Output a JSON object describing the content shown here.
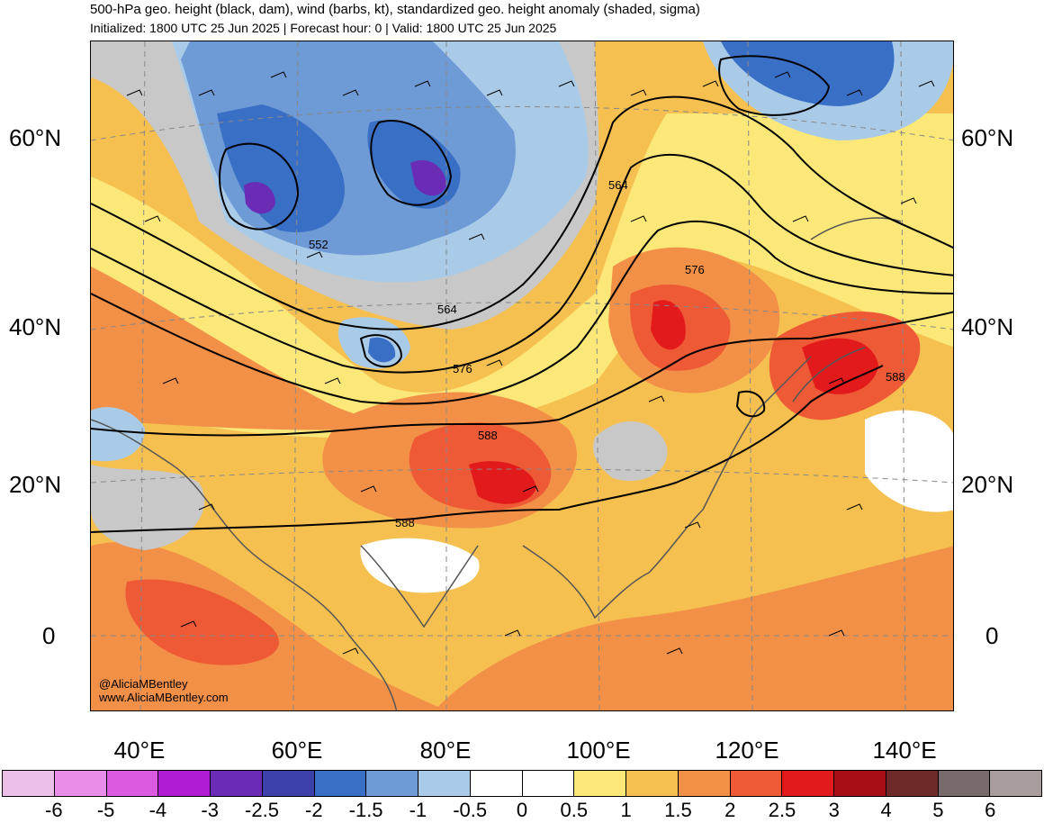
{
  "title": "500-hPa geo. height (black, dam), wind (barbs, kt), standardized geo. height anomaly (shaded, sigma)",
  "subtitle": "Initialized: 1800 UTC 25 Jun 2025 | Forecast hour: 0 | Valid: 1800 UTC 25 Jun 2025",
  "lat_labels": [
    "60°N",
    "40°N",
    "20°N",
    "0"
  ],
  "lon_labels": [
    "40°E",
    "60°E",
    "80°E",
    "100°E",
    "120°E",
    "140°E"
  ],
  "contour_labels": [
    "564",
    "552",
    "576",
    "564",
    "576",
    "588",
    "588",
    "588"
  ],
  "credit": {
    "handle": "@AliciaMBentley",
    "website": "www.AliciaMBentley.com"
  },
  "colorbar": {
    "labels": [
      "-6",
      "-5",
      "-4",
      "-3",
      "-2.5",
      "-2",
      "-1.5",
      "-1",
      "-0.5",
      "0",
      "0.5",
      "1",
      "1.5",
      "2",
      "2.5",
      "3",
      "4",
      "5",
      "6"
    ],
    "colors": [
      "#ebbfe8",
      "#e88ee8",
      "#db5be0",
      "#b01cd6",
      "#6a2bb5",
      "#3b41a8",
      "#3a6fc6",
      "#6e9ad6",
      "#a9cbe8",
      "#ffffff",
      "#ffffff",
      "#fbe878",
      "#f6c050",
      "#f29048",
      "#ef5a36",
      "#e31a1c",
      "#a50f15",
      "#6e2a28",
      "#786a6a",
      "#a89c9c"
    ]
  }
}
